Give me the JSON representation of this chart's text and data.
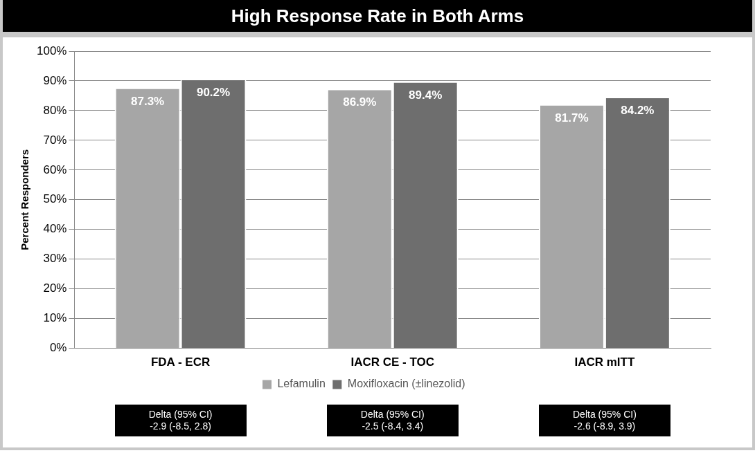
{
  "chart_data": {
    "type": "bar",
    "title": "High Response Rate in Both Arms",
    "ylabel": "Percent Responders",
    "categories": [
      "FDA - ECR",
      "IACR CE - TOC",
      "IACR mITT"
    ],
    "series": [
      {
        "name": "Lefamulin",
        "color": "#a6a6a6",
        "values": [
          87.3,
          86.9,
          81.7
        ],
        "value_labels": [
          "87.3%",
          "86.9%",
          "81.7%"
        ]
      },
      {
        "name": "Moxifloxacin (±linezolid)",
        "color": "#6e6e6e",
        "values": [
          90.2,
          89.4,
          84.2
        ],
        "value_labels": [
          "90.2%",
          "89.4%",
          "84.2%"
        ]
      }
    ],
    "ylim": [
      0,
      100
    ],
    "yticks": [
      {
        "value": 0,
        "label": "0%"
      },
      {
        "value": 10,
        "label": "10%"
      },
      {
        "value": 20,
        "label": "20%"
      },
      {
        "value": 30,
        "label": "30%"
      },
      {
        "value": 40,
        "label": "40%"
      },
      {
        "value": 50,
        "label": "50%"
      },
      {
        "value": 60,
        "label": "60%"
      },
      {
        "value": 70,
        "label": "70%"
      },
      {
        "value": 80,
        "label": "80%"
      },
      {
        "value": 90,
        "label": "90%"
      },
      {
        "value": 100,
        "label": "100%"
      }
    ],
    "grid": "y",
    "legend": "bottom",
    "annotations": [
      "Delta (95% CI)\n-2.9 (-8.5, 2.8)",
      "Delta (95% CI)\n-2.5 (-8.4, 3.4)",
      "Delta (95% CI)\n-2.6 (-8.9, 3.9)"
    ]
  }
}
